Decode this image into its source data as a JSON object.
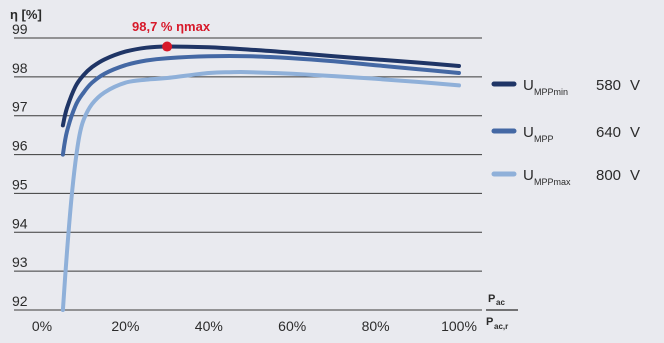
{
  "chart_data": {
    "type": "line",
    "ylabel": "η [%]",
    "xlabel": {
      "numerator": "P",
      "numerator_sub": "ac",
      "denominator": "P",
      "denominator_sub": "ac,r"
    },
    "xlim": [
      0,
      100
    ],
    "ylim": [
      92,
      99
    ],
    "x_ticks": [
      0,
      20,
      40,
      60,
      80,
      100
    ],
    "x_tick_labels": [
      "0%",
      "20%",
      "40%",
      "60%",
      "80%",
      "100%"
    ],
    "y_ticks": [
      92,
      93,
      94,
      95,
      96,
      97,
      98,
      99
    ],
    "y_tick_labels": [
      "92",
      "93",
      "94",
      "95",
      "96",
      "97",
      "98",
      "99"
    ],
    "grid": "horizontal",
    "legend_position": "right",
    "annotation": {
      "text": "98,7 % ηmax",
      "x": 30,
      "y": 98.78,
      "color": "#d7192a"
    },
    "series": [
      {
        "name_main": "U",
        "name_sub": "MPPmin",
        "voltage": "580",
        "color": "#1f3566",
        "x": [
          5,
          6,
          8,
          10,
          12,
          15,
          20,
          25,
          30,
          40,
          50,
          60,
          70,
          80,
          90,
          100
        ],
        "y": [
          96.75,
          97.2,
          97.75,
          98.05,
          98.25,
          98.45,
          98.65,
          98.75,
          98.78,
          98.76,
          98.7,
          98.62,
          98.53,
          98.45,
          98.37,
          98.28
        ]
      },
      {
        "name_main": "U",
        "name_sub": "MPP",
        "voltage": "640",
        "color": "#4468a4",
        "x": [
          5,
          6,
          8,
          10,
          12,
          15,
          20,
          25,
          30,
          40,
          50,
          60,
          70,
          80,
          90,
          100
        ],
        "y": [
          96.0,
          96.6,
          97.25,
          97.6,
          97.85,
          98.08,
          98.3,
          98.42,
          98.48,
          98.53,
          98.53,
          98.48,
          98.4,
          98.3,
          98.2,
          98.1
        ]
      },
      {
        "name_main": "U",
        "name_sub": "MPPmax",
        "voltage": "800",
        "color": "#8fb0d9",
        "x": [
          5,
          6,
          7,
          8,
          9,
          10,
          12,
          15,
          20,
          25,
          30,
          40,
          45,
          50,
          60,
          70,
          80,
          90,
          100
        ],
        "y": [
          92.0,
          93.5,
          94.8,
          95.8,
          96.5,
          96.9,
          97.3,
          97.6,
          97.85,
          97.93,
          97.97,
          98.1,
          98.12,
          98.12,
          98.08,
          98.02,
          97.95,
          97.87,
          97.78
        ]
      }
    ],
    "volt_unit": "V"
  }
}
